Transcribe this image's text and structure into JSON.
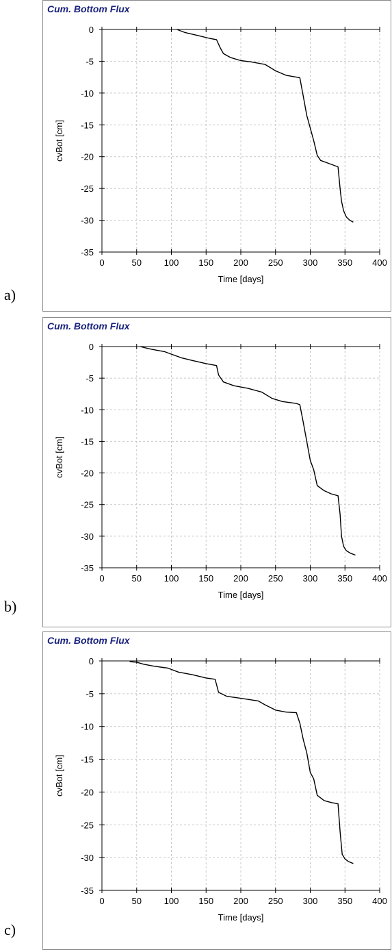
{
  "colors": {
    "title": "#1a237e",
    "line": "#000000",
    "grid": "#c8c8c8",
    "axis": "#000000"
  },
  "chart_data": [
    {
      "panel_label": "a)",
      "type": "line",
      "title": "Cum. Bottom Flux",
      "xlabel": "Time [days]",
      "ylabel": "cvBot [cm]",
      "xlim": [
        0,
        400
      ],
      "ylim": [
        -35,
        0
      ],
      "xticks": [
        0,
        50,
        100,
        150,
        200,
        250,
        300,
        350,
        400
      ],
      "yticks": [
        0,
        -5,
        -10,
        -15,
        -20,
        -25,
        -30,
        -35
      ],
      "grid": true,
      "series": [
        {
          "x": [
            108,
            120,
            140,
            155,
            165,
            170,
            175,
            185,
            200,
            215,
            235,
            250,
            265,
            280,
            285,
            290,
            295,
            300,
            305,
            310,
            315,
            325,
            340,
            343,
            345,
            348,
            352,
            357,
            362
          ],
          "y": [
            0,
            -0.5,
            -1.0,
            -1.4,
            -1.6,
            -2.8,
            -3.8,
            -4.4,
            -4.9,
            -5.1,
            -5.5,
            -6.5,
            -7.2,
            -7.5,
            -7.6,
            -10.5,
            -13.5,
            -15.5,
            -17.5,
            -19.8,
            -20.6,
            -21.0,
            -21.6,
            -25.0,
            -27.0,
            -28.5,
            -29.5,
            -30.0,
            -30.3
          ]
        }
      ]
    },
    {
      "panel_label": "b)",
      "type": "line",
      "title": "Cum. Bottom Flux",
      "xlabel": "Time [days]",
      "ylabel": "cvBot [cm]",
      "xlim": [
        0,
        400
      ],
      "ylim": [
        -35,
        0
      ],
      "xticks": [
        0,
        50,
        100,
        150,
        200,
        250,
        300,
        350,
        400
      ],
      "yticks": [
        0,
        -5,
        -10,
        -15,
        -20,
        -25,
        -30,
        -35
      ],
      "grid": true,
      "series": [
        {
          "x": [
            55,
            70,
            90,
            100,
            115,
            130,
            150,
            165,
            168,
            175,
            190,
            210,
            230,
            245,
            260,
            280,
            285,
            290,
            295,
            300,
            305,
            310,
            320,
            330,
            340,
            343,
            345,
            348,
            352,
            358,
            365
          ],
          "y": [
            0,
            -0.4,
            -0.8,
            -1.2,
            -1.8,
            -2.2,
            -2.7,
            -3.0,
            -4.5,
            -5.6,
            -6.2,
            -6.6,
            -7.2,
            -8.2,
            -8.7,
            -9.0,
            -9.2,
            -12.0,
            -15.0,
            -18.0,
            -19.5,
            -22.0,
            -22.8,
            -23.3,
            -23.6,
            -26.5,
            -30.0,
            -31.6,
            -32.3,
            -32.7,
            -33.0
          ]
        }
      ]
    },
    {
      "panel_label": "c)",
      "type": "line",
      "title": "Cum. Bottom Flux",
      "xlabel": "Time [days]",
      "ylabel": "cvBot [cm]",
      "xlim": [
        0,
        400
      ],
      "ylim": [
        -35,
        0
      ],
      "xticks": [
        0,
        50,
        100,
        150,
        200,
        250,
        300,
        350,
        400
      ],
      "yticks": [
        0,
        -5,
        -10,
        -15,
        -20,
        -25,
        -30,
        -35
      ],
      "grid": true,
      "series": [
        {
          "x": [
            40,
            50,
            60,
            75,
            95,
            110,
            130,
            150,
            163,
            165,
            168,
            180,
            200,
            225,
            235,
            250,
            265,
            280,
            285,
            290,
            295,
            300,
            305,
            310,
            320,
            330,
            340,
            343,
            346,
            350,
            355,
            362
          ],
          "y": [
            -0.1,
            -0.2,
            -0.5,
            -0.8,
            -1.1,
            -1.7,
            -2.1,
            -2.6,
            -2.8,
            -3.6,
            -4.8,
            -5.4,
            -5.7,
            -6.1,
            -6.7,
            -7.5,
            -7.8,
            -7.9,
            -9.5,
            -12.0,
            -14.0,
            -17.0,
            -18.0,
            -20.5,
            -21.3,
            -21.6,
            -21.8,
            -26.0,
            -29.5,
            -30.2,
            -30.6,
            -30.9
          ]
        }
      ]
    }
  ]
}
